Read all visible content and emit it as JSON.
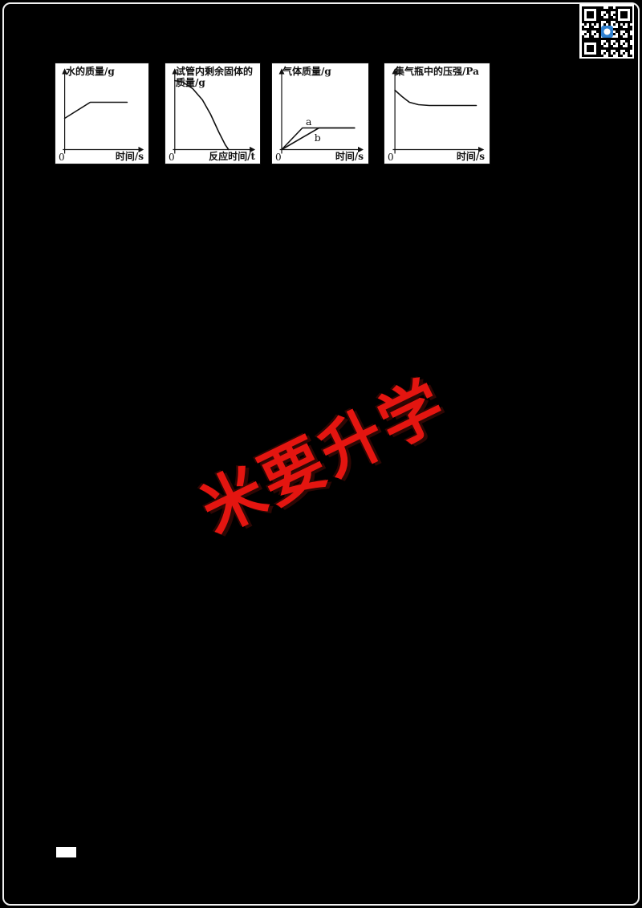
{
  "page": {
    "background": "#000000",
    "frame_color": "#f2f2f2"
  },
  "watermark": {
    "text": "米要升学",
    "color": "#e41510",
    "rotation_deg": -26
  },
  "qr_code": {
    "present": true,
    "center_icon_color": "#2f80cf"
  },
  "footer": {
    "page_marker": ""
  },
  "chart_data": [
    {
      "type": "line",
      "panel": 1,
      "ylabel": "水的质量/g",
      "xlabel": "时间/s",
      "origin_label": "0",
      "axis_ticks": "none (qualitative sketch, relative units 0-100)",
      "series": [
        {
          "name": "水的质量",
          "shape": "starts above origin, rises linearly, then plateaus",
          "points": [
            [
              0,
              39
            ],
            [
              32,
              59
            ],
            [
              78,
              59
            ]
          ]
        }
      ]
    },
    {
      "type": "line",
      "panel": 2,
      "ylabel": "试管内剩余固体的质量/g",
      "xlabel": "反应时间/t",
      "origin_label": "0",
      "axis_ticks": "none (qualitative sketch, relative units 0-100)",
      "series": [
        {
          "name": "剩余固体质量",
          "shape": "decreases with increasing rate and reaches zero",
          "points": [
            [
              0,
              86
            ],
            [
              10,
              84
            ],
            [
              22,
              76
            ],
            [
              34,
              62
            ],
            [
              44,
              44
            ],
            [
              54,
              22
            ],
            [
              62,
              6
            ],
            [
              66,
              0
            ]
          ]
        }
      ]
    },
    {
      "type": "line",
      "panel": 3,
      "ylabel": "气体质量/g",
      "xlabel": "时间/s",
      "origin_label": "0",
      "axis_ticks": "none (qualitative sketch, relative units 0-100)",
      "series": [
        {
          "name": "a",
          "shape": "fast rise from origin then plateau",
          "points": [
            [
              0,
              0
            ],
            [
              25,
              27
            ],
            [
              88,
              27
            ]
          ]
        },
        {
          "name": "b",
          "shape": "slower rise from origin to the same plateau",
          "points": [
            [
              0,
              0
            ],
            [
              45,
              27
            ],
            [
              88,
              27
            ]
          ]
        }
      ]
    },
    {
      "type": "line",
      "panel": 4,
      "ylabel": "集气瓶中的压强/Pa",
      "xlabel": "时间/s",
      "origin_label": "0",
      "axis_ticks": "none (qualitative sketch, relative units 0-100)",
      "series": [
        {
          "name": "压强",
          "shape": "starts high, decreases, then levels off",
          "points": [
            [
              0,
              74
            ],
            [
              8,
              66
            ],
            [
              16,
              59
            ],
            [
              26,
              56
            ],
            [
              38,
              55
            ],
            [
              90,
              55
            ]
          ]
        }
      ]
    }
  ]
}
